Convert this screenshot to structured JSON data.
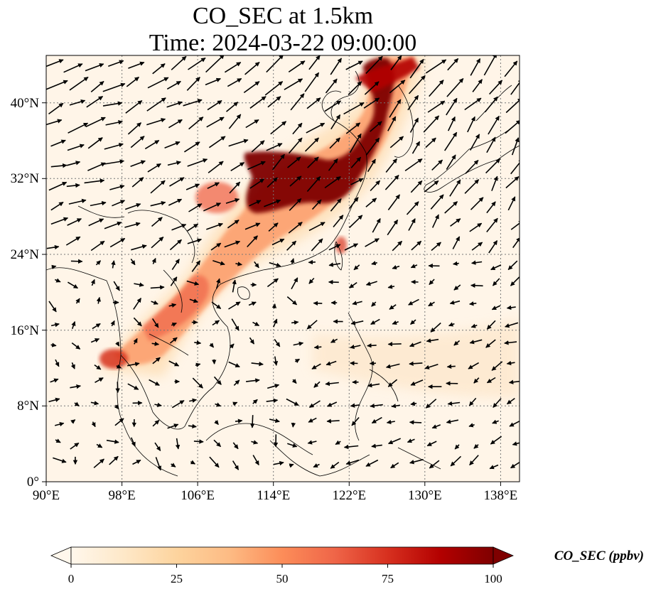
{
  "title": {
    "line1": "CO_SEC at 1.5km",
    "line2": "Time: 2024-03-22 09:00:00"
  },
  "map": {
    "lon_range": [
      90,
      140
    ],
    "lat_range": [
      0,
      45
    ],
    "lon_ticks": [
      "90°E",
      "98°E",
      "106°E",
      "114°E",
      "122°E",
      "130°E",
      "138°E"
    ],
    "lat_ticks": [
      "0°",
      "8°N",
      "16°N",
      "24°N",
      "32°N",
      "40°N"
    ],
    "gridlines": "dotted",
    "wind_vectors": true
  },
  "colorbar": {
    "label": "CO_SEC (ppbv)",
    "ticks": [
      "0",
      "25",
      "50",
      "75",
      "100"
    ],
    "range": [
      0,
      100
    ],
    "colormap": "OrRd",
    "extend": "both",
    "colors": [
      "#fff7ec",
      "#fee8c8",
      "#fdd49e",
      "#fdbb84",
      "#fc8d59",
      "#ef6548",
      "#d7301f",
      "#b30000",
      "#7f0000"
    ]
  }
}
